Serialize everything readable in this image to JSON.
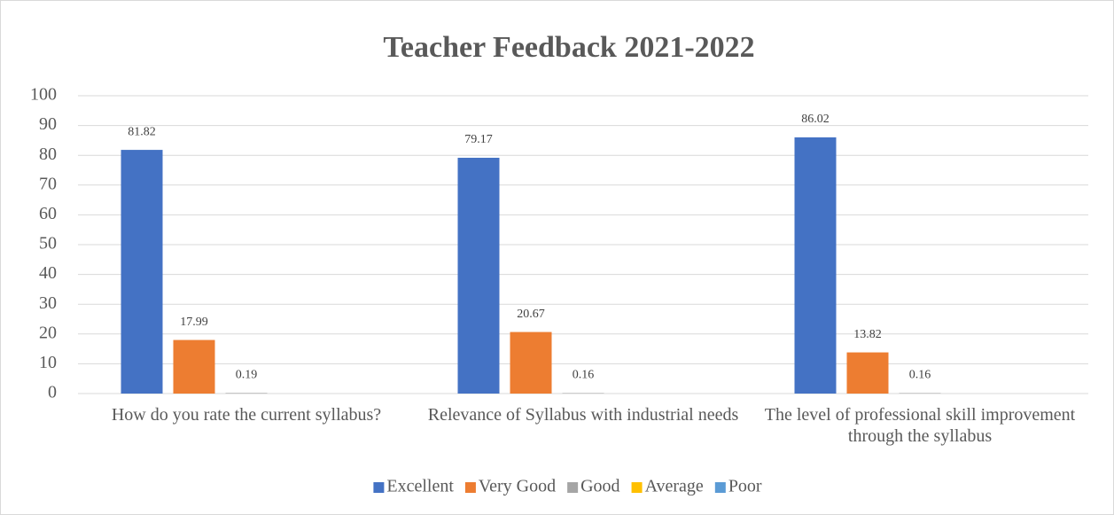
{
  "chart_data": {
    "type": "bar",
    "title": "Teacher Feedback 2021-2022",
    "categories": [
      "How do you rate the current syllabus?",
      "Relevance of Syllabus with industrial needs",
      "The level of professional skill improvement through the syllabus"
    ],
    "series": [
      {
        "name": "Excellent",
        "color": "#4472c4",
        "values": [
          81.82,
          79.17,
          86.02
        ]
      },
      {
        "name": "Very Good",
        "color": "#ed7d31",
        "values": [
          17.99,
          20.67,
          13.82
        ]
      },
      {
        "name": "Good",
        "color": "#a5a5a5",
        "values": [
          0.19,
          0.16,
          0.16
        ]
      },
      {
        "name": "Average",
        "color": "#ffc000",
        "values": [
          null,
          null,
          null
        ]
      },
      {
        "name": "Poor",
        "color": "#5b9bd5",
        "values": [
          null,
          null,
          null
        ]
      }
    ],
    "ylim": [
      0,
      100
    ],
    "yticks": [
      0,
      10,
      20,
      30,
      40,
      50,
      60,
      70,
      80,
      90,
      100
    ],
    "grid": true,
    "legend": "bottom"
  }
}
